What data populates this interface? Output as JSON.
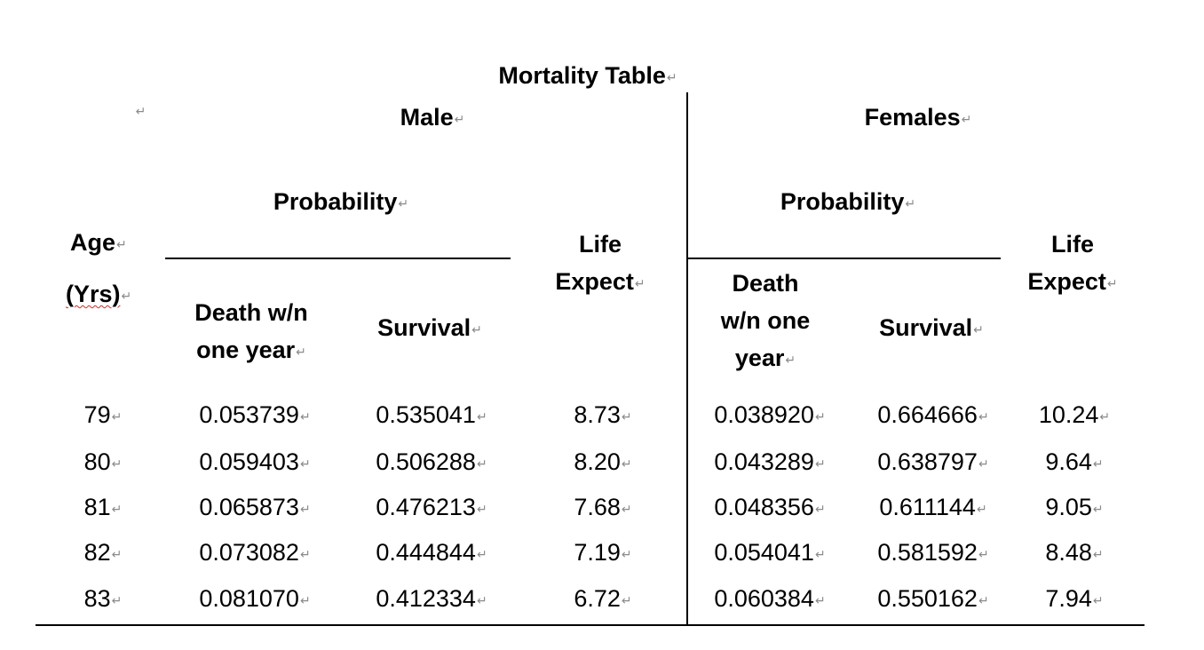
{
  "title": "Mortality Table",
  "paragraph_mark": "↵",
  "header": {
    "empty_cell": "",
    "male": "Male",
    "females": "Females",
    "probability_male": "Probability",
    "probability_female": "Probability",
    "age": "Age",
    "yrs": "(Yrs)",
    "life_male_1": "Life",
    "life_male_2": "Expect",
    "life_female_1": "Life",
    "life_female_2": "Expect",
    "death_male_1": "Death w/n",
    "death_male_2": "one year",
    "survival_male": "Survival",
    "death_female_1": "Death",
    "death_female_2": "w/n one",
    "death_female_3": "year",
    "survival_female": "Survival"
  },
  "rows": [
    {
      "age": "79",
      "m_death": "0.053739",
      "m_surv": "0.535041",
      "m_life": "8.73",
      "f_death": "0.038920",
      "f_surv": "0.664666",
      "f_life": "10.24"
    },
    {
      "age": "80",
      "m_death": "0.059403",
      "m_surv": "0.506288",
      "m_life": "8.20",
      "f_death": "0.043289",
      "f_surv": "0.638797",
      "f_life": "9.64"
    },
    {
      "age": "81",
      "m_death": "0.065873",
      "m_surv": "0.476213",
      "m_life": "7.68",
      "f_death": "0.048356",
      "f_surv": "0.611144",
      "f_life": "9.05"
    },
    {
      "age": "82",
      "m_death": "0.073082",
      "m_surv": "0.444844",
      "m_life": "7.19",
      "f_death": "0.054041",
      "f_surv": "0.581592",
      "f_life": "8.48"
    },
    {
      "age": "83",
      "m_death": "0.081070",
      "m_surv": "0.412334",
      "m_life": "6.72",
      "f_death": "0.060384",
      "f_surv": "0.550162",
      "f_life": "7.94"
    }
  ]
}
